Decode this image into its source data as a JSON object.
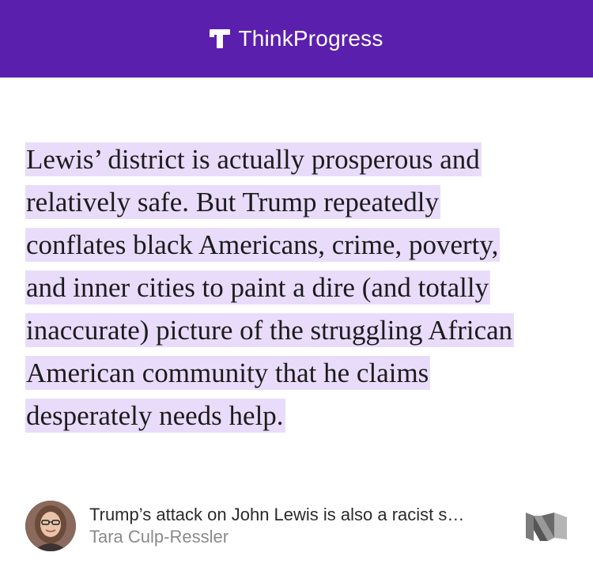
{
  "colors": {
    "header_bg": "#5b1fae",
    "highlight": "#e9dcfb",
    "text": "#1c1c1c",
    "author_text": "#8a8a8a"
  },
  "header": {
    "brand": "ThinkProgress",
    "logo_icon": "thinkprogress-t-icon"
  },
  "quote": {
    "lines": [
      "Lewis’ district is actually prosperous and",
      "relatively safe. But Trump repeatedly",
      "conflates black Americans, crime, poverty,",
      "and inner cities to paint a dire (and totally",
      "inaccurate) picture of the struggling African",
      "American community that he claims",
      "desperately needs help."
    ]
  },
  "footer": {
    "article_title": "Trump’s attack on John Lewis is also a racist s…",
    "author": "Tara Culp-Ressler",
    "avatar_icon": "author-avatar",
    "medium_icon": "medium-logo-icon"
  }
}
